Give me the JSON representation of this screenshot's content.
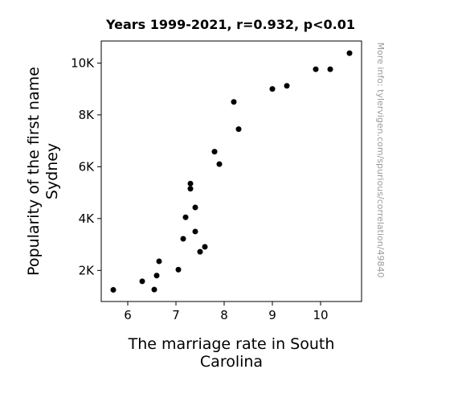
{
  "chart_data": {
    "type": "scatter",
    "title": "Years 1999-2021, r=0.932, p<0.01",
    "xlabel": [
      "The marriage rate in South",
      "Carolina"
    ],
    "ylabel": [
      "Popularity of the first name",
      "Sydney"
    ],
    "xlim": [
      5.45,
      10.85
    ],
    "ylim": [
      800,
      10850
    ],
    "xticks": [
      6,
      7,
      8,
      9,
      10
    ],
    "xtick_labels": [
      "6",
      "7",
      "8",
      "9",
      "10"
    ],
    "yticks": [
      2000,
      4000,
      6000,
      8000,
      10000
    ],
    "ytick_labels": [
      "2K",
      "4K",
      "6K",
      "8K",
      "10K"
    ],
    "grid": false,
    "marker_color": "#000000",
    "points": [
      {
        "x": 5.7,
        "y": 1250
      },
      {
        "x": 6.3,
        "y": 1580
      },
      {
        "x": 6.55,
        "y": 1260
      },
      {
        "x": 6.6,
        "y": 1800
      },
      {
        "x": 6.65,
        "y": 2350
      },
      {
        "x": 7.05,
        "y": 2030
      },
      {
        "x": 7.15,
        "y": 3220
      },
      {
        "x": 7.2,
        "y": 4050
      },
      {
        "x": 7.3,
        "y": 5350
      },
      {
        "x": 7.3,
        "y": 5150
      },
      {
        "x": 7.4,
        "y": 4430
      },
      {
        "x": 7.4,
        "y": 3500
      },
      {
        "x": 7.5,
        "y": 2720
      },
      {
        "x": 7.6,
        "y": 2910
      },
      {
        "x": 7.8,
        "y": 6580
      },
      {
        "x": 7.9,
        "y": 6100
      },
      {
        "x": 8.2,
        "y": 8500
      },
      {
        "x": 8.3,
        "y": 7450
      },
      {
        "x": 9.0,
        "y": 9000
      },
      {
        "x": 9.3,
        "y": 9120
      },
      {
        "x": 9.9,
        "y": 9760
      },
      {
        "x": 10.2,
        "y": 9760
      },
      {
        "x": 10.6,
        "y": 10380
      }
    ]
  },
  "watermark": "More info: tylervigen.com/spurious/correlation/49840"
}
